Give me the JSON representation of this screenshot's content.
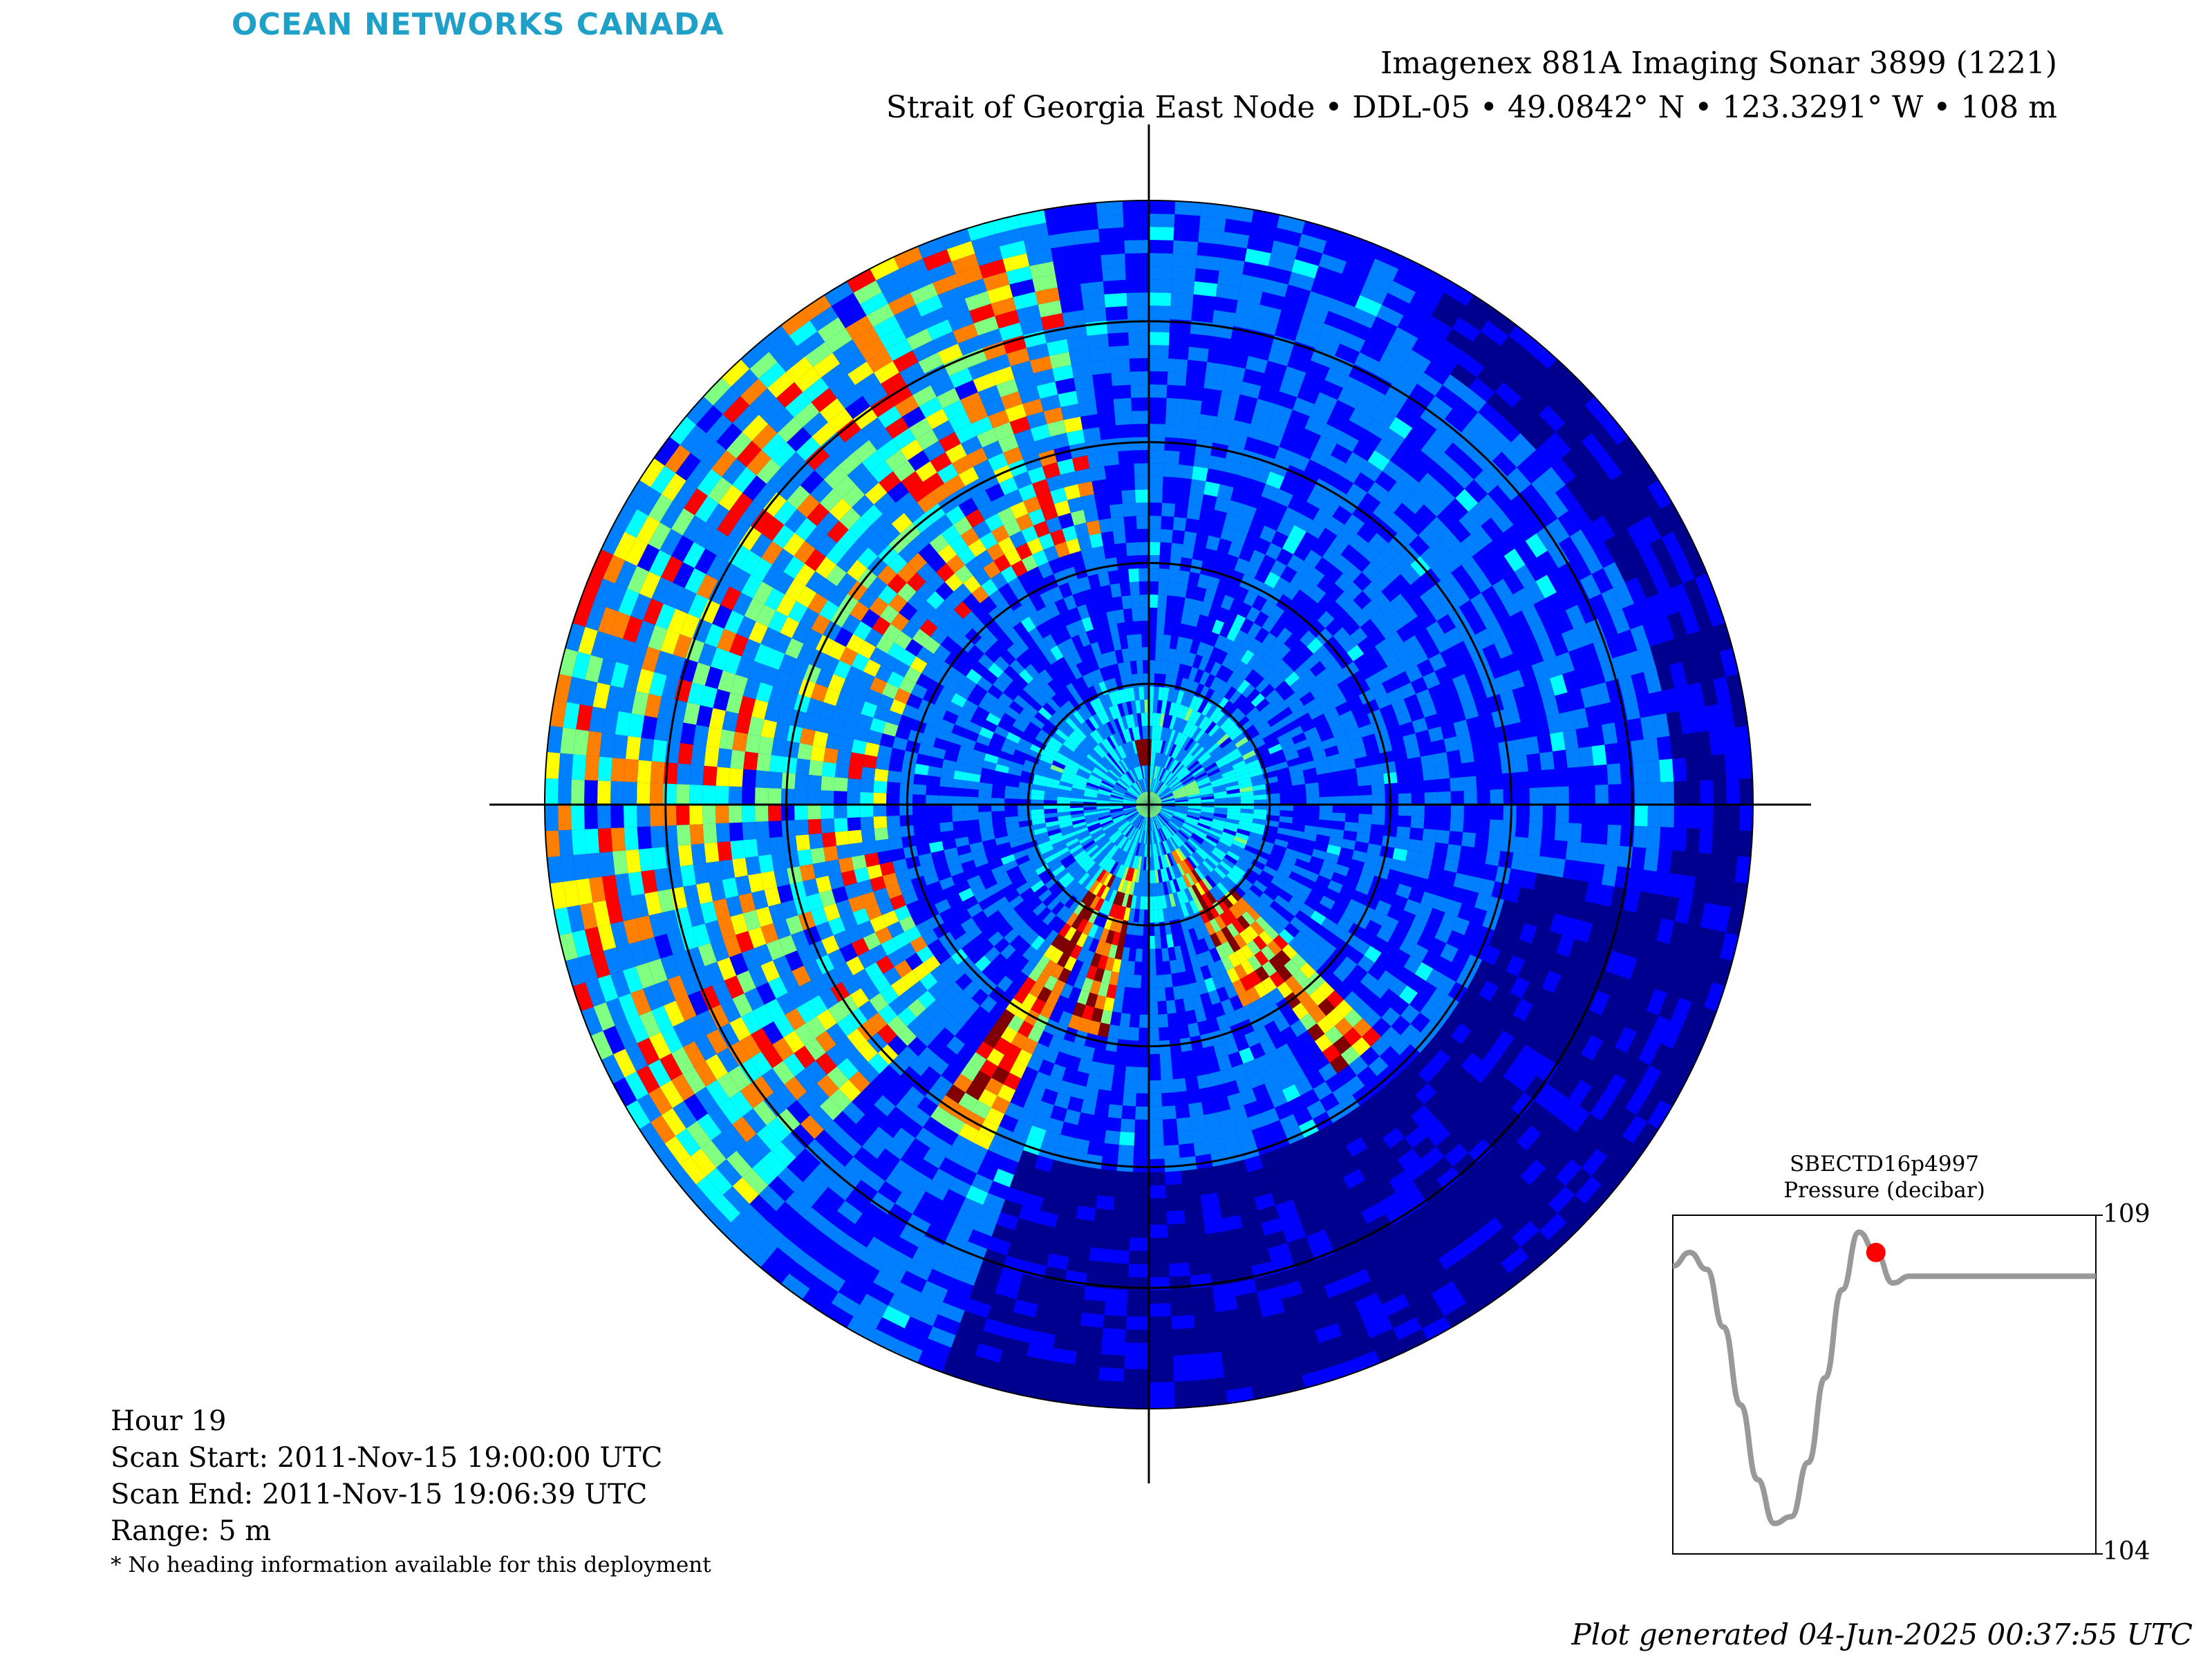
{
  "brand": "OCEAN NETWORKS CANADA",
  "title": {
    "line1": "Imagenex 881A Imaging Sonar 3899 (1221)",
    "line2": "Strait of Georgia East Node • DDL-05 • 49.0842° N • 123.3291° W • 108 m"
  },
  "info": {
    "hour": "Hour 19",
    "scan_start": "Scan Start: 2011-Nov-15 19:00:00 UTC",
    "scan_end": "Scan End: 2011-Nov-15 19:06:39 UTC",
    "range": "Range: 5 m",
    "note": "* No heading information available for this deployment"
  },
  "footer": "Plot generated 04-Jun-2025 00:37:55 UTC",
  "colors": {
    "background_low": "#00008f",
    "jet_colormap": [
      "#00008f",
      "#0000ff",
      "#0080ff",
      "#00ffff",
      "#80ff80",
      "#ffff00",
      "#ff8000",
      "#ff0000",
      "#800000"
    ],
    "pressure_line": "#999999",
    "marker": "#ff0000"
  },
  "chart_data": [
    {
      "type": "heatmap",
      "projection": "polar",
      "range_m": 5,
      "rings_m": [
        1,
        2,
        3,
        4
      ],
      "crosshair": true,
      "colormap": "jet",
      "echo_features": [
        {
          "kind": "point",
          "range_m": 0.45,
          "bearing_deg": 355,
          "intensity": 1.0
        },
        {
          "kind": "point",
          "range_m": 0.35,
          "bearing_deg": 70,
          "intensity": 0.55
        },
        {
          "kind": "beam",
          "bearing_deg": 210,
          "from_m": 0.6,
          "to_m": 3.1,
          "intensity": 0.95
        },
        {
          "kind": "beam",
          "bearing_deg": 195,
          "from_m": 0.5,
          "to_m": 2.0,
          "intensity": 1.0
        },
        {
          "kind": "beam",
          "bearing_deg": 150,
          "from_m": 0.4,
          "to_m": 1.9,
          "intensity": 1.0
        },
        {
          "kind": "beam",
          "bearing_deg": 140,
          "from_m": 1.0,
          "to_m": 2.7,
          "intensity": 0.8
        },
        {
          "kind": "band",
          "from_bearing_deg": 225,
          "to_bearing_deg": 350,
          "from_m": 2.2,
          "to_m": 5.0,
          "intensity": 0.6
        }
      ]
    },
    {
      "type": "line",
      "title": "SBECTD16p4997",
      "subtitle": "Pressure (decibar)",
      "ylim": [
        104,
        109
      ],
      "yticks": [
        109,
        104
      ],
      "x": [
        0,
        4,
        8,
        12,
        16,
        20,
        24,
        28,
        32,
        36,
        40,
        44,
        48,
        52,
        56,
        60,
        64,
        68,
        72,
        76,
        80,
        84,
        88,
        92,
        96,
        100
      ],
      "y": [
        108.25,
        108.45,
        108.2,
        107.35,
        106.2,
        105.1,
        104.45,
        104.55,
        105.35,
        106.6,
        107.9,
        108.75,
        108.45,
        108.0,
        108.1,
        108.1,
        108.1,
        108.1,
        108.1,
        108.1,
        108.1,
        108.1,
        108.1,
        108.1,
        108.1,
        108.1
      ],
      "marker_index": 12
    }
  ]
}
